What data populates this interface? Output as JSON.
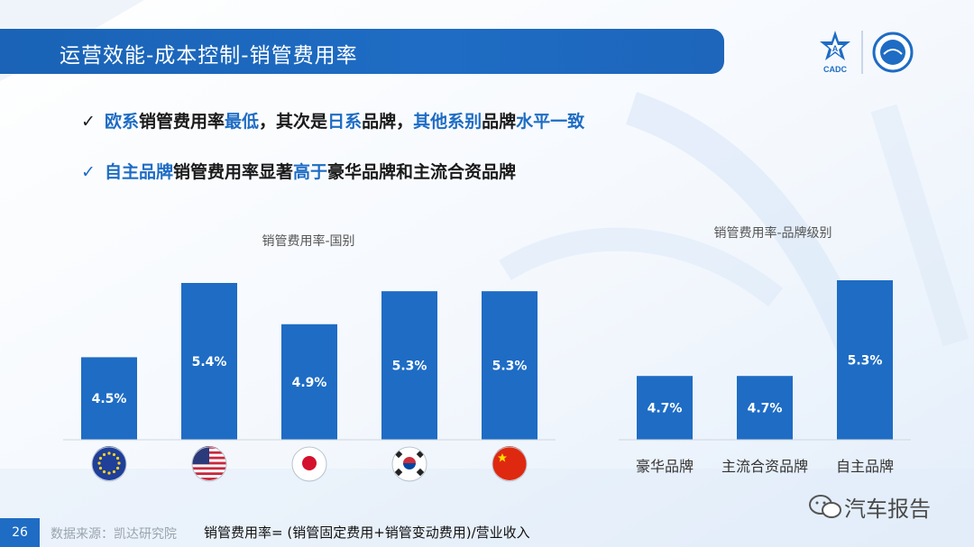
{
  "header": {
    "title": "运营效能-成本控制-销管费用率",
    "logo_text": "CADC"
  },
  "bullets": [
    {
      "segments": [
        {
          "text": "欧系",
          "highlight": true
        },
        {
          "text": "销管费用率",
          "highlight": false
        },
        {
          "text": "最低",
          "highlight": true
        },
        {
          "text": "，其次是",
          "highlight": false
        },
        {
          "text": "日系",
          "highlight": true
        },
        {
          "text": "品牌，",
          "highlight": false
        },
        {
          "text": "其他系别",
          "highlight": true
        },
        {
          "text": "品牌",
          "highlight": false
        },
        {
          "text": "水平一致",
          "highlight": true
        }
      ]
    },
    {
      "segments": [
        {
          "text": "自主品牌",
          "highlight": true
        },
        {
          "text": "销管费用率显著",
          "highlight": false
        },
        {
          "text": "高于",
          "highlight": true
        },
        {
          "text": "豪华品牌和主流合资品牌",
          "highlight": false
        }
      ]
    }
  ],
  "chart_data": [
    {
      "type": "bar",
      "title": "销管费用率-国别",
      "categories": [
        "EU",
        "US",
        "JP",
        "KR",
        "CN"
      ],
      "category_icons": [
        "eu-flag-icon",
        "us-flag-icon",
        "japan-flag-icon",
        "korea-flag-icon",
        "china-flag-icon"
      ],
      "values": [
        4.5,
        5.4,
        4.9,
        5.3,
        5.3
      ],
      "data_labels": [
        "4.5%",
        "5.4%",
        "4.9%",
        "5.3%",
        "5.3%"
      ],
      "ylim": [
        3.5,
        5.5
      ],
      "grid": false,
      "color": "#1e6cc4"
    },
    {
      "type": "bar",
      "title": "销管费用率-品牌级别",
      "categories": [
        "豪华品牌",
        "主流合资品牌",
        "自主品牌"
      ],
      "values": [
        4.7,
        4.7,
        5.3
      ],
      "data_labels": [
        "4.7%",
        "4.7%",
        "5.3%"
      ],
      "ylim": [
        4.3,
        5.4
      ],
      "grid": false,
      "color": "#1e6cc4"
    }
  ],
  "footer": {
    "page_number": "26",
    "source": "数据来源：凯达研究院",
    "formula": "销管费用率= (销管固定费用+销管变动费用)/营业收入"
  },
  "watermark": {
    "text": "汽车报告"
  }
}
